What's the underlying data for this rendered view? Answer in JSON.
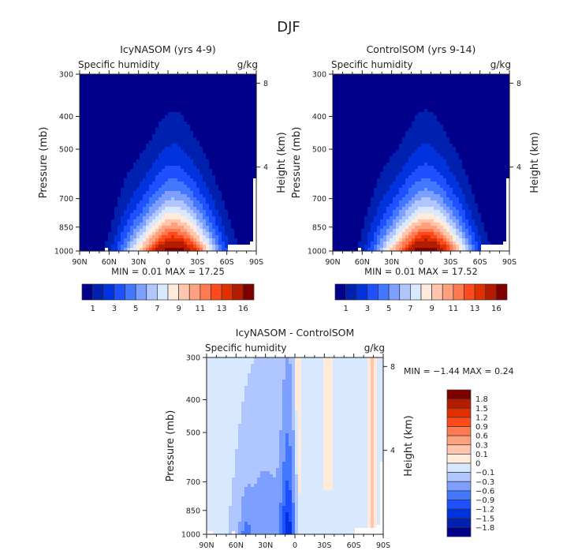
{
  "figure_title": "DJF",
  "chart_data": [
    {
      "type": "heatmap",
      "title": "IcyNASOM (yrs 4-9)",
      "left_string": "Specific humidity",
      "right_string": "g/kg",
      "ylabel": "Pressure (mb)",
      "ylabel_right": "Height (km)",
      "xticks": [
        "90N",
        "60N",
        "30N",
        "0",
        "30S",
        "60S",
        "90S"
      ],
      "yticks": [
        "300",
        "400",
        "500",
        "700",
        "850",
        "1000"
      ],
      "yticks_right": [
        "8",
        "4"
      ],
      "ylim": [
        1000,
        300
      ],
      "xlim": [
        90,
        -90
      ],
      "stats": "MIN =    0.01   MAX =   17.25",
      "min": 0.01,
      "max": 17.25,
      "colorbar": {
        "orientation": "horizontal",
        "labels": [
          "1",
          "3",
          "5",
          "7",
          "9",
          "11",
          "13",
          "16"
        ],
        "colors": [
          "#00008b",
          "#0020b0",
          "#0033dd",
          "#1f50ff",
          "#4277ff",
          "#7d9fff",
          "#b0c6ff",
          "#d8e8ff",
          "#ffeadb",
          "#ffc6ad",
          "#ffa07f",
          "#ff7a50",
          "#ff4a1c",
          "#e03000",
          "#b31c00",
          "#800000"
        ]
      }
    },
    {
      "type": "heatmap",
      "title": "ControlSOM (yrs 9-14)",
      "left_string": "Specific humidity",
      "right_string": "g/kg",
      "ylabel": "Pressure (mb)",
      "ylabel_right": "Height (km)",
      "xticks": [
        "90N",
        "60N",
        "30N",
        "0",
        "30S",
        "60S",
        "90S"
      ],
      "yticks": [
        "300",
        "400",
        "500",
        "700",
        "850",
        "1000"
      ],
      "yticks_right": [
        "8",
        "4"
      ],
      "ylim": [
        1000,
        300
      ],
      "xlim": [
        90,
        -90
      ],
      "stats": "MIN =    0.01   MAX =   17.52",
      "min": 0.01,
      "max": 17.52,
      "colorbar": {
        "orientation": "horizontal",
        "labels": [
          "1",
          "3",
          "5",
          "7",
          "9",
          "11",
          "13",
          "16"
        ],
        "colors": [
          "#00008b",
          "#0020b0",
          "#0033dd",
          "#1f50ff",
          "#4277ff",
          "#7d9fff",
          "#b0c6ff",
          "#d8e8ff",
          "#ffeadb",
          "#ffc6ad",
          "#ffa07f",
          "#ff7a50",
          "#ff4a1c",
          "#e03000",
          "#b31c00",
          "#800000"
        ]
      }
    },
    {
      "type": "heatmap",
      "title": "IcyNASOM - ControlSOM",
      "left_string": "Specific humidity",
      "right_string": "g/kg",
      "ylabel": "Pressure (mb)",
      "ylabel_right": "Height (km)",
      "xticks": [
        "90N",
        "60N",
        "30N",
        "0",
        "30S",
        "60S",
        "90S"
      ],
      "yticks": [
        "300",
        "400",
        "500",
        "700",
        "850",
        "1000"
      ],
      "yticks_right": [
        "8",
        "4"
      ],
      "ylim": [
        1000,
        300
      ],
      "xlim": [
        90,
        -90
      ],
      "stats": "MIN =   −1.44   MAX =    0.24",
      "min": -1.44,
      "max": 0.24,
      "colorbar": {
        "orientation": "vertical",
        "labels": [
          "1.8",
          "1.5",
          "1.2",
          "0.9",
          "0.6",
          "0.3",
          "0.1",
          "0",
          "−0.1",
          "−0.3",
          "−0.6",
          "−0.9",
          "−1.2",
          "−1.5",
          "−1.8"
        ],
        "colors": [
          "#800000",
          "#b31c00",
          "#e03000",
          "#ff4a1c",
          "#ff7a50",
          "#ffa07f",
          "#ffc6ad",
          "#ffeadb",
          "#d8e8ff",
          "#b0c6ff",
          "#7d9fff",
          "#4277ff",
          "#1f50ff",
          "#0033dd",
          "#0020b0",
          "#00008b"
        ]
      }
    }
  ]
}
